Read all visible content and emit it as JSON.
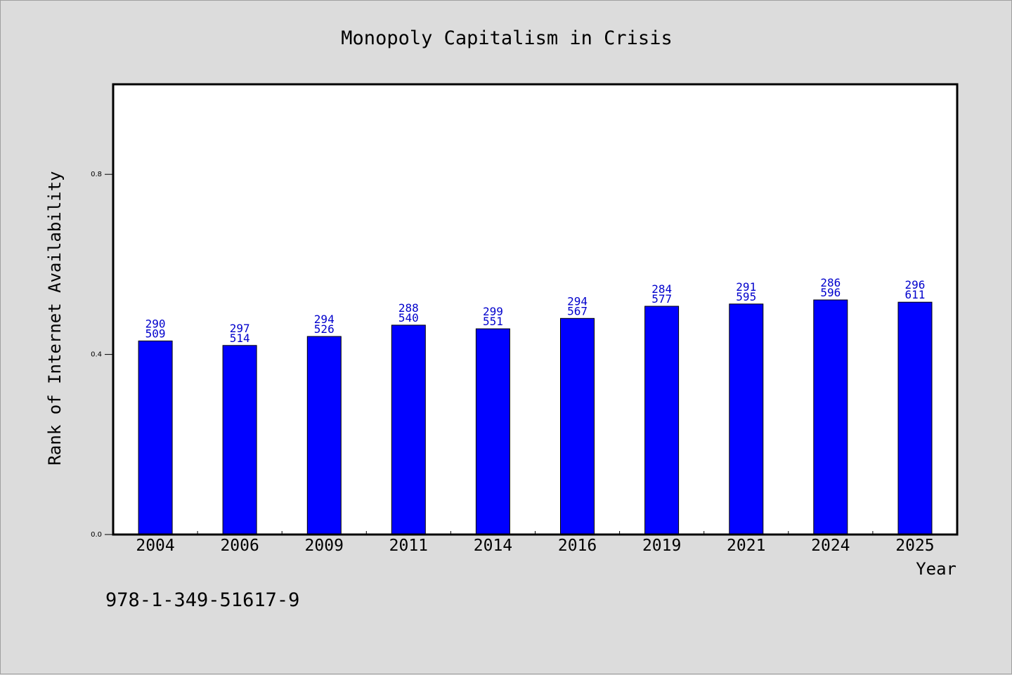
{
  "chart_data": {
    "type": "bar",
    "title": "Monopoly Capitalism in Crisis",
    "xlabel": "Year",
    "ylabel": "Rank of Internet Availability",
    "categories": [
      "2004",
      "2006",
      "2009",
      "2011",
      "2014",
      "2016",
      "2019",
      "2021",
      "2024",
      "2025"
    ],
    "values": [
      0.43,
      0.42,
      0.44,
      0.465,
      0.457,
      0.48,
      0.507,
      0.512,
      0.521,
      0.516
    ],
    "annotations": [
      [
        "290",
        "509"
      ],
      [
        "297",
        "514"
      ],
      [
        "294",
        "526"
      ],
      [
        "288",
        "540"
      ],
      [
        "299",
        "551"
      ],
      [
        "294",
        "567"
      ],
      [
        "284",
        "577"
      ],
      [
        "291",
        "595"
      ],
      [
        "286",
        "596"
      ],
      [
        "296",
        "611"
      ]
    ],
    "yticks": [
      "0.0",
      "0.4",
      "0.8"
    ],
    "ytick_values": [
      0.0,
      0.4,
      0.8
    ],
    "ylim": [
      0.0,
      1.0
    ],
    "bar_color": "#0000ff",
    "label_color": "#0000cc",
    "grid": false,
    "legend": "none"
  },
  "footer": {
    "isbn": "978-1-349-51617-9"
  },
  "colors": {
    "background": "#dcdcdc",
    "plot_area": "#ffffff"
  }
}
